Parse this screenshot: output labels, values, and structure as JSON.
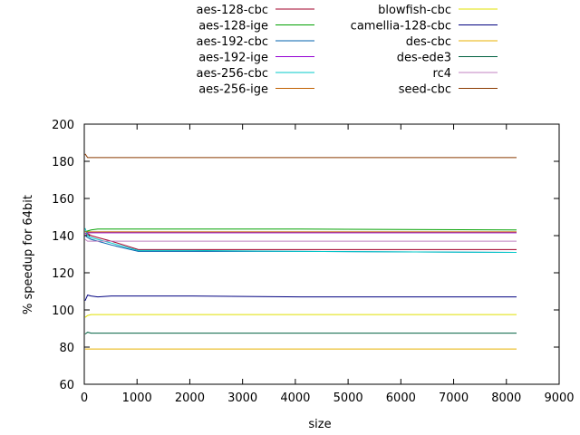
{
  "chart_data": {
    "type": "line",
    "xlabel": "size",
    "ylabel": "% speedup for 64bit",
    "xlim": [
      0,
      9000
    ],
    "ylim": [
      60,
      200
    ],
    "xticks": [
      0,
      1000,
      2000,
      3000,
      4000,
      5000,
      6000,
      7000,
      8000,
      9000
    ],
    "yticks": [
      60,
      80,
      100,
      120,
      140,
      160,
      180,
      200
    ],
    "grid": false,
    "legend_position": "top",
    "x": [
      16,
      64,
      128,
      256,
      512,
      1024,
      2048,
      4096,
      8192
    ],
    "series": [
      {
        "name": "aes-128-cbc",
        "color": "#a0002a",
        "values": [
          140,
          141,
          140,
          139,
          137,
          132.5,
          132.5,
          132.5,
          132.5
        ]
      },
      {
        "name": "aes-128-ige",
        "color": "#00a000",
        "values": [
          142,
          142.5,
          143,
          143.5,
          143.5,
          143.5,
          143.5,
          143.5,
          143
        ]
      },
      {
        "name": "aes-192-cbc",
        "color": "#0060ad",
        "values": [
          140,
          139,
          138,
          137,
          135,
          131.5,
          131.5,
          131.5,
          131
        ]
      },
      {
        "name": "aes-192-ige",
        "color": "#9400d3",
        "values": [
          141,
          141.5,
          141.5,
          141.5,
          141.5,
          141.5,
          141.5,
          141.5,
          141.5
        ]
      },
      {
        "name": "aes-256-cbc",
        "color": "#00c8c8",
        "values": [
          144,
          140,
          139,
          138,
          136,
          132,
          132,
          131.5,
          131
        ]
      },
      {
        "name": "aes-256-ige",
        "color": "#c06000",
        "values": [
          142,
          142,
          142,
          142,
          142,
          142,
          142,
          142,
          142
        ]
      },
      {
        "name": "blowfish-cbc",
        "color": "#e0e000",
        "values": [
          96,
          97,
          97.5,
          97.5,
          97.5,
          97.5,
          97.5,
          97.5,
          97.5
        ]
      },
      {
        "name": "camellia-128-cbc",
        "color": "#000080",
        "values": [
          105,
          108,
          107.5,
          107,
          107.5,
          107.5,
          107.5,
          107,
          107
        ]
      },
      {
        "name": "des-cbc",
        "color": "#e8b000",
        "values": [
          79,
          79,
          79,
          79,
          79,
          79,
          79,
          79,
          79
        ]
      },
      {
        "name": "des-ede3",
        "color": "#006040",
        "values": [
          87,
          88,
          87.5,
          87.5,
          87.5,
          87.5,
          87.5,
          87.5,
          87.5
        ]
      },
      {
        "name": "rc4",
        "color": "#c080c0",
        "values": [
          138,
          137,
          137,
          137,
          137,
          137,
          137,
          137,
          137
        ]
      },
      {
        "name": "seed-cbc",
        "color": "#8b3a00",
        "values": [
          184,
          182,
          182,
          182,
          182,
          182,
          182,
          182,
          182
        ]
      }
    ]
  }
}
